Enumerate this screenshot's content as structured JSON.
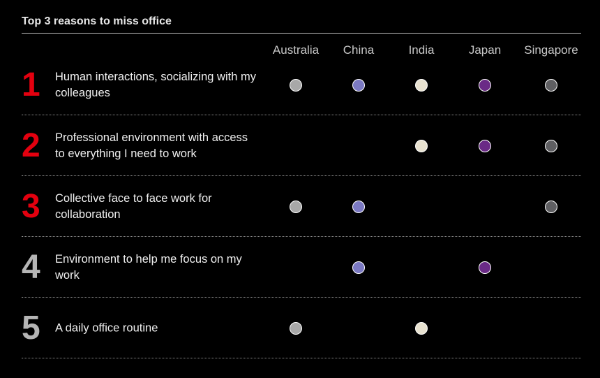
{
  "chart_data": {
    "type": "table",
    "title": "Top 3 reasons to miss office",
    "columns": [
      {
        "name": "Australia",
        "color": "#a8a8a8"
      },
      {
        "name": "China",
        "color": "#7b79c2"
      },
      {
        "name": "India",
        "color": "#e8e2d0"
      },
      {
        "name": "Japan",
        "color": "#6a2a86"
      },
      {
        "name": "Singapore",
        "color": "#5f5f62"
      }
    ],
    "rows": [
      {
        "rank": "1",
        "rank_color": "#e3000f",
        "reason": "Human interactions, socializing with my colleagues",
        "marks": [
          true,
          true,
          true,
          true,
          true
        ]
      },
      {
        "rank": "2",
        "rank_color": "#e3000f",
        "reason": "Professional environment with access to everything I need to work",
        "marks": [
          false,
          false,
          true,
          true,
          true
        ]
      },
      {
        "rank": "3",
        "rank_color": "#e3000f",
        "reason": "Collective face to face work for collaboration",
        "marks": [
          true,
          true,
          false,
          false,
          true
        ]
      },
      {
        "rank": "4",
        "rank_color": "#b5b5b5",
        "reason": "Environment to help me focus on my work",
        "marks": [
          false,
          true,
          false,
          true,
          false
        ]
      },
      {
        "rank": "5",
        "rank_color": "#b5b5b5",
        "reason": "A daily office routine",
        "marks": [
          true,
          false,
          true,
          false,
          false
        ]
      }
    ]
  }
}
